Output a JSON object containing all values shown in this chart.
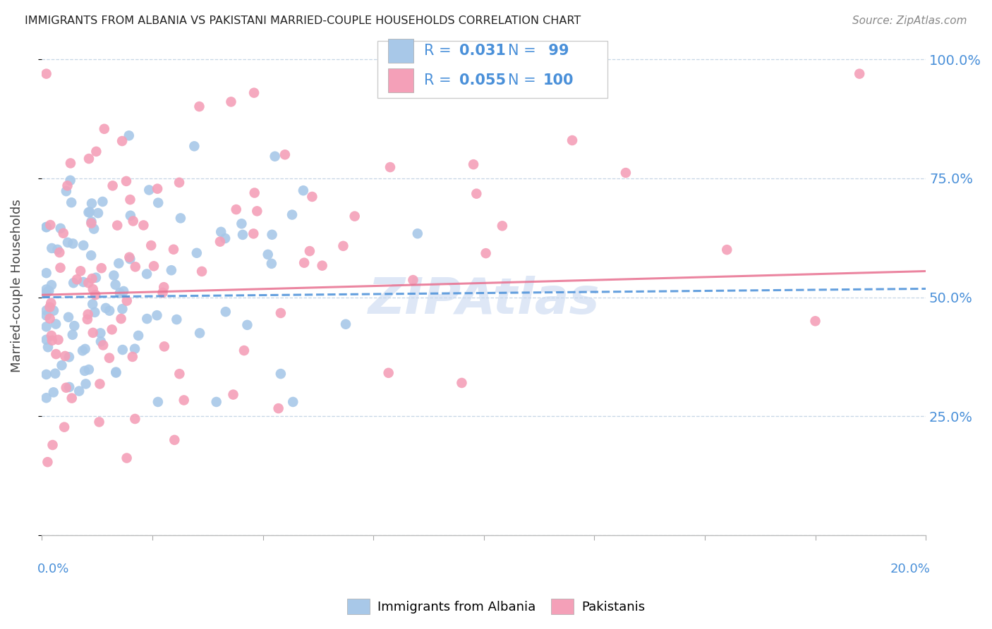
{
  "title": "IMMIGRANTS FROM ALBANIA VS PAKISTANI MARRIED-COUPLE HOUSEHOLDS CORRELATION CHART",
  "source": "Source: ZipAtlas.com",
  "ylabel": "Married-couple Households",
  "xlim": [
    0.0,
    0.2
  ],
  "ylim": [
    0.0,
    1.05
  ],
  "R_albania": 0.031,
  "N_albania": 99,
  "R_pakistan": 0.055,
  "N_pakistan": 100,
  "color_albania": "#a8c8e8",
  "color_pakistan": "#f4a0b8",
  "color_blue": "#4a90d9",
  "color_pink": "#e87090",
  "watermark_color": "#c8d8f0",
  "legend_label_albania": "Immigrants from Albania",
  "legend_label_pakistan": "Pakistanis",
  "trend_alb_y0": 0.5,
  "trend_alb_y1": 0.518,
  "trend_pak_y0": 0.505,
  "trend_pak_y1": 0.555
}
